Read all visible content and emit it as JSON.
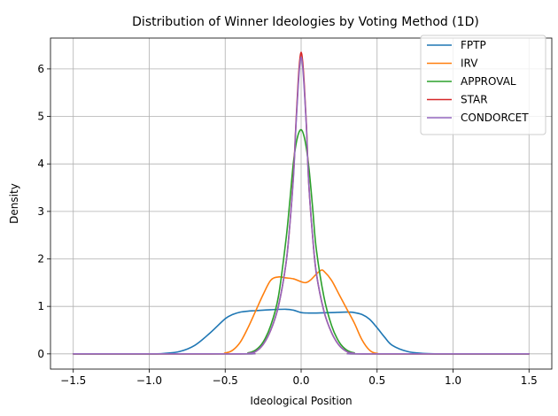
{
  "chart_data": {
    "type": "line",
    "title": "Distribution of Winner Ideologies by Voting Method (1D)",
    "xlabel": "Ideological Position",
    "ylabel": "Density",
    "xlim": [
      -1.65,
      1.65
    ],
    "ylim": [
      -0.32,
      6.65
    ],
    "xticks": [
      -1.5,
      -1.0,
      -0.5,
      0.0,
      0.5,
      1.0,
      1.5
    ],
    "xtick_labels": [
      "−1.5",
      "−1.0",
      "−0.5",
      "0.0",
      "0.5",
      "1.0",
      "1.5"
    ],
    "yticks": [
      0,
      1,
      2,
      3,
      4,
      5,
      6
    ],
    "ytick_labels": [
      "0",
      "1",
      "2",
      "3",
      "4",
      "5",
      "6"
    ],
    "grid": true,
    "legend_position": "top-right",
    "series": [
      {
        "name": "FPTP",
        "color": "#1f77b4",
        "x": [
          -1.5,
          -1.0,
          -0.9,
          -0.8,
          -0.7,
          -0.6,
          -0.5,
          -0.45,
          -0.4,
          -0.35,
          -0.3,
          -0.2,
          -0.1,
          -0.05,
          0.0,
          0.05,
          0.1,
          0.2,
          0.3,
          0.35,
          0.4,
          0.45,
          0.5,
          0.55,
          0.6,
          0.7,
          0.8,
          0.9,
          1.0,
          1.5
        ],
        "y": [
          0.0,
          0.0,
          0.01,
          0.05,
          0.18,
          0.44,
          0.74,
          0.83,
          0.88,
          0.9,
          0.91,
          0.93,
          0.94,
          0.92,
          0.87,
          0.86,
          0.86,
          0.87,
          0.88,
          0.87,
          0.83,
          0.73,
          0.55,
          0.35,
          0.18,
          0.05,
          0.01,
          0.0,
          0.0,
          0.0
        ]
      },
      {
        "name": "IRV",
        "color": "#ff7f0e",
        "x": [
          -1.5,
          -0.6,
          -0.5,
          -0.45,
          -0.4,
          -0.35,
          -0.3,
          -0.25,
          -0.2,
          -0.15,
          -0.1,
          -0.05,
          0.0,
          0.03,
          0.06,
          0.1,
          0.13,
          0.15,
          0.2,
          0.25,
          0.3,
          0.35,
          0.4,
          0.45,
          0.5,
          0.6,
          1.5
        ],
        "y": [
          0.0,
          0.0,
          0.02,
          0.08,
          0.25,
          0.55,
          0.9,
          1.25,
          1.55,
          1.62,
          1.6,
          1.58,
          1.52,
          1.5,
          1.55,
          1.68,
          1.76,
          1.74,
          1.55,
          1.25,
          0.95,
          0.65,
          0.3,
          0.08,
          0.01,
          0.0,
          0.0
        ]
      },
      {
        "name": "APPROVAL",
        "color": "#2ca02c",
        "x": [
          -1.5,
          -0.4,
          -0.35,
          -0.3,
          -0.25,
          -0.2,
          -0.15,
          -0.1,
          -0.075,
          -0.05,
          -0.025,
          0.0,
          0.025,
          0.05,
          0.075,
          0.1,
          0.15,
          0.2,
          0.25,
          0.3,
          0.35,
          0.4,
          1.5
        ],
        "y": [
          0.0,
          0.0,
          0.02,
          0.08,
          0.25,
          0.6,
          1.2,
          2.4,
          3.2,
          4.05,
          4.55,
          4.72,
          4.5,
          3.95,
          3.1,
          2.2,
          1.2,
          0.6,
          0.25,
          0.08,
          0.02,
          0.0,
          0.0
        ]
      },
      {
        "name": "STAR",
        "color": "#d62728",
        "x": [
          -1.5,
          -0.4,
          -0.35,
          -0.3,
          -0.25,
          -0.2,
          -0.15,
          -0.1,
          -0.075,
          -0.05,
          -0.035,
          -0.02,
          -0.01,
          0.0,
          0.01,
          0.02,
          0.035,
          0.05,
          0.075,
          0.1,
          0.15,
          0.2,
          0.25,
          0.3,
          0.35,
          0.4,
          1.5
        ],
        "y": [
          0.0,
          0.0,
          0.01,
          0.05,
          0.2,
          0.5,
          1.0,
          1.9,
          2.7,
          3.8,
          4.8,
          5.7,
          6.15,
          6.35,
          6.15,
          5.7,
          4.8,
          3.6,
          2.5,
          1.7,
          0.9,
          0.45,
          0.18,
          0.05,
          0.01,
          0.0,
          0.0
        ]
      },
      {
        "name": "CONDORCET",
        "color": "#9467bd",
        "x": [
          -1.5,
          -0.4,
          -0.35,
          -0.3,
          -0.25,
          -0.2,
          -0.15,
          -0.1,
          -0.075,
          -0.05,
          -0.035,
          -0.02,
          -0.01,
          0.0,
          0.01,
          0.02,
          0.035,
          0.05,
          0.075,
          0.1,
          0.15,
          0.2,
          0.25,
          0.3,
          0.35,
          0.4,
          1.5
        ],
        "y": [
          0.0,
          0.0,
          0.01,
          0.05,
          0.2,
          0.5,
          1.0,
          1.9,
          2.7,
          3.75,
          4.75,
          5.6,
          6.05,
          6.25,
          6.05,
          5.6,
          4.75,
          3.6,
          2.5,
          1.7,
          0.9,
          0.45,
          0.18,
          0.05,
          0.01,
          0.0,
          0.0
        ]
      }
    ]
  }
}
